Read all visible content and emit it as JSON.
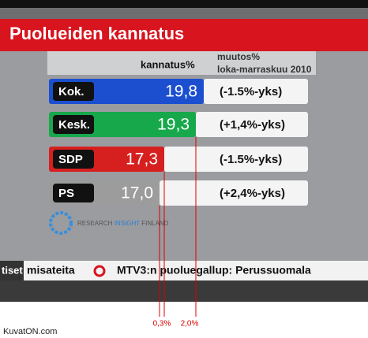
{
  "chart_data": {
    "type": "bar",
    "title": "Puolueiden kannatus",
    "value_header": "kannatus%",
    "change_header": "muutos%",
    "period": "loka-marraskuu 2010",
    "categories": [
      "Kok.",
      "Kesk.",
      "SDP",
      "PS"
    ],
    "values": [
      19.8,
      19.3,
      17.3,
      17.0
    ],
    "value_labels": [
      "19,8",
      "19,3",
      "17,3",
      "17,0"
    ],
    "changes": [
      "(-1.5%-yks)",
      "(+1,4%-yks)",
      "(-1.5%-yks)",
      "(+2,4%-yks)"
    ],
    "colors": [
      "#1b4fd0",
      "#17a84b",
      "#d62020",
      "#9c9c9c"
    ],
    "xlim": [
      10,
      20
    ],
    "annotations": [
      "0,3%",
      "2,0%"
    ]
  },
  "logo": [
    "RESEARCH",
    "INSIGHT",
    "FINLAND"
  ],
  "ticker": [
    "tiset",
    "misateita",
    "MTV3:n puoluegallup: Perussuomala"
  ],
  "watermark": "KuvatON.com"
}
